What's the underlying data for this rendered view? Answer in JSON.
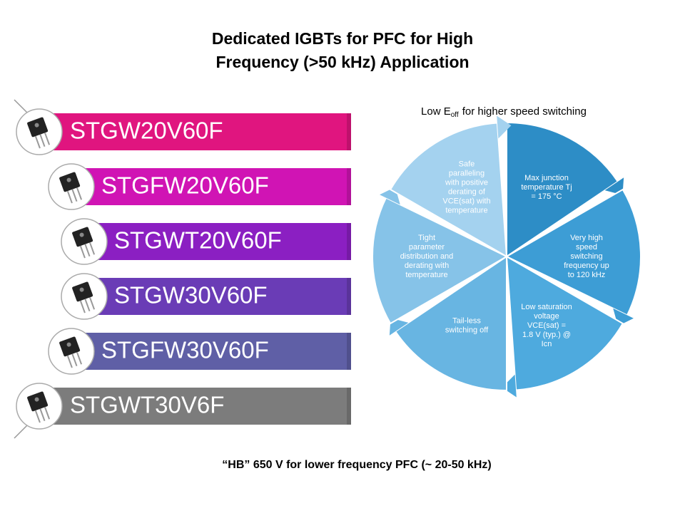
{
  "header": {
    "title_lines": [
      "Dedicated IGBTs for PFC for High",
      "Frequency (>50 kHz) Application"
    ]
  },
  "products": [
    "STGW20V60F",
    "STGFW20V60F",
    "STGWT20V60F",
    "STGW30V60F",
    "STGFW30V60F",
    "STGWT30V6F"
  ],
  "cycle": {
    "heading": {
      "prefix": "Low E",
      "subscript": "off",
      "suffix": "for higher speed switching"
    },
    "segments": [
      [
        "Max junction",
        "temperature  Tj",
        "= 175 °C"
      ],
      [
        "Very high",
        "speed",
        "switching",
        "frequency  up",
        "to 120 kHz"
      ],
      [
        "Low saturation",
        "voltage",
        "VCE(sat) =",
        "1.8 V (typ.) @",
        "Icn"
      ],
      [
        "Tail-less",
        "switching off"
      ],
      [
        "Tight",
        "parameter",
        "distribution and",
        "derating with",
        "temperature"
      ],
      [
        "Safe",
        "paralleling",
        "with positive",
        "derating  of",
        "VCE(sat)  with",
        "temperature"
      ]
    ]
  },
  "footer": "“HB” 650 V for lower frequency PFC (~ 20-50 kHz)"
}
